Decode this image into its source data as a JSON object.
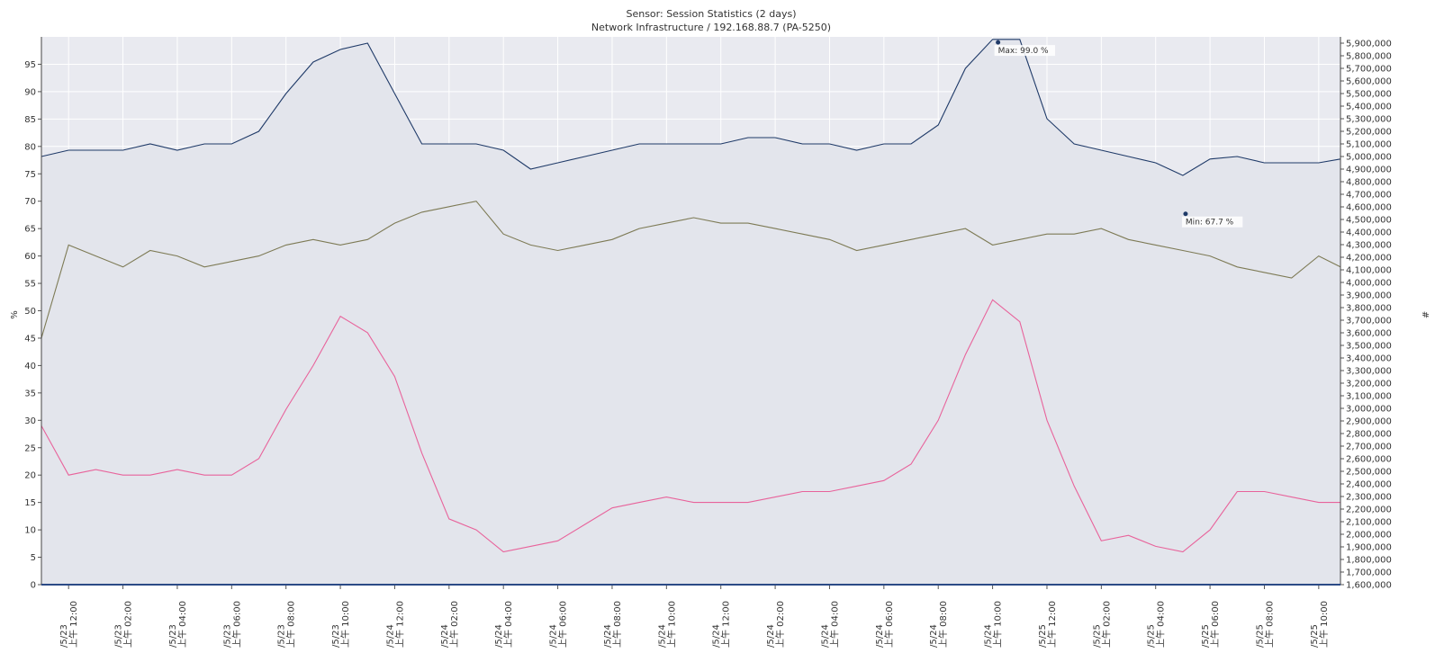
{
  "chart_data": {
    "type": "line",
    "title": "Sensor: Session Statistics (2 days)",
    "subtitle": "Network Infrastructure / 192.168.88.7 (PA-5250)",
    "ylabel_left": "%",
    "ylabel_right": "#",
    "ylim_left": [
      0,
      100
    ],
    "ylim_right": [
      1600000,
      5950000
    ],
    "grid": true,
    "yticks_left": [
      "0",
      "5",
      "10",
      "15",
      "20",
      "25",
      "30",
      "35",
      "40",
      "45",
      "50",
      "55",
      "60",
      "65",
      "70",
      "75",
      "80",
      "85",
      "90",
      "95"
    ],
    "yticks_right": [
      "1,600,000",
      "1,700,000",
      "1,800,000",
      "1,900,000",
      "2,000,000",
      "2,100,000",
      "2,200,000",
      "2,300,000",
      "2,400,000",
      "2,500,000",
      "2,600,000",
      "2,700,000",
      "2,800,000",
      "2,900,000",
      "3,000,000",
      "3,100,000",
      "3,200,000",
      "3,300,000",
      "3,400,000",
      "3,500,000",
      "3,600,000",
      "3,700,000",
      "3,800,000",
      "3,900,000",
      "4,000,000",
      "4,100,000",
      "4,200,000",
      "4,300,000",
      "4,400,000",
      "4,500,000",
      "4,600,000",
      "4,700,000",
      "4,800,000",
      "4,900,000",
      "5,000,000",
      "5,100,000",
      "5,200,000",
      "5,300,000",
      "5,400,000",
      "5,500,000",
      "5,600,000",
      "5,700,000",
      "5,800,000",
      "5,900,000"
    ],
    "x_range_hours": [
      -1.0,
      46.8
    ],
    "xticks": [
      {
        "h": 0,
        "date": "/5/23",
        "time": "上午 12:00"
      },
      {
        "h": 2,
        "date": "/5/23",
        "time": "上午 02:00"
      },
      {
        "h": 4,
        "date": "/5/23",
        "time": "上午 04:00"
      },
      {
        "h": 6,
        "date": "/5/23",
        "time": "上午 06:00"
      },
      {
        "h": 8,
        "date": "/5/23",
        "time": "上午 08:00"
      },
      {
        "h": 10,
        "date": "/5/23",
        "time": "上午 10:00"
      },
      {
        "h": 12,
        "date": "/5/24",
        "time": "上午 12:00"
      },
      {
        "h": 14,
        "date": "/5/24",
        "time": "上午 02:00"
      },
      {
        "h": 16,
        "date": "/5/24",
        "time": "上午 04:00"
      },
      {
        "h": 18,
        "date": "/5/24",
        "time": "上午 06:00"
      },
      {
        "h": 20,
        "date": "/5/24",
        "time": "上午 08:00"
      },
      {
        "h": 22,
        "date": "/5/24",
        "time": "上午 10:00"
      },
      {
        "h": 24,
        "date": "/5/24",
        "time": "上午 12:00"
      },
      {
        "h": 26,
        "date": "/5/24",
        "time": "上午 02:00"
      },
      {
        "h": 28,
        "date": "/5/24",
        "time": "上午 04:00"
      },
      {
        "h": 30,
        "date": "/5/24",
        "time": "上午 06:00"
      },
      {
        "h": 32,
        "date": "/5/24",
        "time": "上午 08:00"
      },
      {
        "h": 34,
        "date": "/5/24",
        "time": "上午 10:00"
      },
      {
        "h": 36,
        "date": "/5/25",
        "time": "上午 12:00"
      },
      {
        "h": 38,
        "date": "/5/25",
        "time": "上午 02:00"
      },
      {
        "h": 40,
        "date": "/5/25",
        "time": "上午 04:00"
      },
      {
        "h": 42,
        "date": "/5/25",
        "time": "上午 06:00"
      },
      {
        "h": 44,
        "date": "/5/25",
        "time": "上午 08:00"
      },
      {
        "h": 46,
        "date": "/5/25",
        "time": "上午 10:00"
      }
    ],
    "annotations": [
      {
        "text": "Max: 99.0 %",
        "h": 34.2,
        "y": 99.0
      },
      {
        "text": "Min: 67.7 %",
        "h": 41.1,
        "y": 67.7
      }
    ],
    "series": [
      {
        "color": "#1f3a68",
        "axis": "right",
        "fill": "#e3e5ec",
        "points": [
          [
            -1,
            5000000
          ],
          [
            0,
            5050000
          ],
          [
            1,
            5050000
          ],
          [
            2,
            5050000
          ],
          [
            3,
            5100000
          ],
          [
            4,
            5050000
          ],
          [
            5,
            5100000
          ],
          [
            6,
            5100000
          ],
          [
            7,
            5200000
          ],
          [
            8,
            5500000
          ],
          [
            9,
            5750000
          ],
          [
            10,
            5850000
          ],
          [
            11,
            5900000
          ],
          [
            12,
            5500000
          ],
          [
            13,
            5100000
          ],
          [
            14,
            5100000
          ],
          [
            15,
            5100000
          ],
          [
            16,
            5050000
          ],
          [
            17,
            4900000
          ],
          [
            18,
            4950000
          ],
          [
            19,
            5000000
          ],
          [
            20,
            5050000
          ],
          [
            21,
            5100000
          ],
          [
            22,
            5100000
          ],
          [
            23,
            5100000
          ],
          [
            24,
            5100000
          ],
          [
            25,
            5150000
          ],
          [
            26,
            5150000
          ],
          [
            27,
            5100000
          ],
          [
            28,
            5100000
          ],
          [
            29,
            5050000
          ],
          [
            30,
            5100000
          ],
          [
            31,
            5100000
          ],
          [
            32,
            5250000
          ],
          [
            33,
            5700000
          ],
          [
            34,
            5930000
          ],
          [
            35,
            5930000
          ],
          [
            36,
            5300000
          ],
          [
            37,
            5100000
          ],
          [
            38,
            5050000
          ],
          [
            39,
            5000000
          ],
          [
            40,
            4950000
          ],
          [
            41,
            4850000
          ],
          [
            42,
            4980000
          ],
          [
            43,
            5000000
          ],
          [
            44,
            4950000
          ],
          [
            45,
            4950000
          ],
          [
            46,
            4950000
          ],
          [
            46.8,
            4980000
          ]
        ]
      },
      {
        "color": "#7d7a55",
        "axis": "left",
        "points": [
          [
            -1,
            45
          ],
          [
            0,
            62
          ],
          [
            1,
            60
          ],
          [
            2,
            58
          ],
          [
            3,
            61
          ],
          [
            4,
            60
          ],
          [
            5,
            58
          ],
          [
            6,
            59
          ],
          [
            7,
            60
          ],
          [
            8,
            62
          ],
          [
            9,
            63
          ],
          [
            10,
            62
          ],
          [
            11,
            63
          ],
          [
            12,
            66
          ],
          [
            13,
            68
          ],
          [
            14,
            69
          ],
          [
            15,
            70
          ],
          [
            16,
            64
          ],
          [
            17,
            62
          ],
          [
            18,
            61
          ],
          [
            19,
            62
          ],
          [
            20,
            63
          ],
          [
            21,
            65
          ],
          [
            22,
            66
          ],
          [
            23,
            67
          ],
          [
            24,
            66
          ],
          [
            25,
            66
          ],
          [
            26,
            65
          ],
          [
            27,
            64
          ],
          [
            28,
            63
          ],
          [
            29,
            61
          ],
          [
            30,
            62
          ],
          [
            31,
            63
          ],
          [
            32,
            64
          ],
          [
            33,
            65
          ],
          [
            34,
            62
          ],
          [
            35,
            63
          ],
          [
            36,
            64
          ],
          [
            37,
            64
          ],
          [
            38,
            65
          ],
          [
            39,
            63
          ],
          [
            40,
            62
          ],
          [
            41,
            61
          ],
          [
            42,
            60
          ],
          [
            43,
            58
          ],
          [
            44,
            57
          ],
          [
            45,
            56
          ],
          [
            46,
            60
          ],
          [
            46.8,
            58
          ]
        ]
      },
      {
        "color": "#e8639b",
        "axis": "left",
        "points": [
          [
            -1,
            29
          ],
          [
            0,
            20
          ],
          [
            1,
            21
          ],
          [
            2,
            20
          ],
          [
            3,
            20
          ],
          [
            4,
            21
          ],
          [
            5,
            20
          ],
          [
            6,
            20
          ],
          [
            7,
            23
          ],
          [
            8,
            32
          ],
          [
            9,
            40
          ],
          [
            10,
            49
          ],
          [
            11,
            46
          ],
          [
            12,
            38
          ],
          [
            13,
            24
          ],
          [
            14,
            12
          ],
          [
            15,
            10
          ],
          [
            16,
            6
          ],
          [
            17,
            7
          ],
          [
            18,
            8
          ],
          [
            19,
            11
          ],
          [
            20,
            14
          ],
          [
            21,
            15
          ],
          [
            22,
            16
          ],
          [
            23,
            15
          ],
          [
            24,
            15
          ],
          [
            25,
            15
          ],
          [
            26,
            16
          ],
          [
            27,
            17
          ],
          [
            28,
            17
          ],
          [
            29,
            18
          ],
          [
            30,
            19
          ],
          [
            31,
            22
          ],
          [
            32,
            30
          ],
          [
            33,
            42
          ],
          [
            34,
            52
          ],
          [
            35,
            48
          ],
          [
            36,
            30
          ],
          [
            37,
            18
          ],
          [
            38,
            8
          ],
          [
            39,
            9
          ],
          [
            40,
            7
          ],
          [
            41,
            6
          ],
          [
            42,
            10
          ],
          [
            43,
            17
          ],
          [
            44,
            17
          ],
          [
            45,
            16
          ],
          [
            46,
            15
          ],
          [
            46.8,
            15
          ]
        ]
      }
    ]
  }
}
